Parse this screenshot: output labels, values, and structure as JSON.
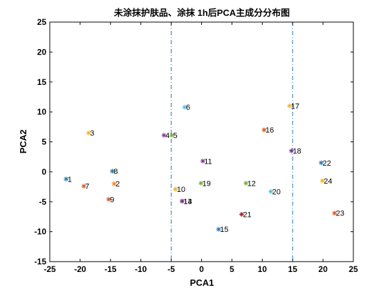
{
  "chart_data": {
    "type": "scatter",
    "title": "未涂抹护肤品、涂抹 1h后PCA主成分分布图",
    "xlabel": "PCA1",
    "ylabel": "PCA2",
    "xlim": [
      -25,
      25
    ],
    "ylim": [
      -15,
      25
    ],
    "xticks": [
      "-25",
      "-20",
      "-15",
      "-10",
      "-5",
      "0",
      "5",
      "10",
      "15",
      "20",
      "25"
    ],
    "yticks": [
      "-15",
      "-10",
      "-5",
      "0",
      "5",
      "10",
      "15",
      "20",
      "25"
    ],
    "grid": false,
    "legend": "none",
    "reference_lines": [
      {
        "axis": "x",
        "value": -5,
        "style": "dash-dot",
        "color": "#1f77b4"
      },
      {
        "axis": "x",
        "value": 15,
        "style": "dash-dot",
        "color": "#1f77b4"
      }
    ],
    "points": [
      {
        "label": "1",
        "x": -22.3,
        "y": -1.2,
        "color": "#1f77b4"
      },
      {
        "label": "2",
        "x": -14.4,
        "y": -2.0,
        "color": "#ff7f0e"
      },
      {
        "label": "3",
        "x": -18.6,
        "y": 6.5,
        "color": "#edb120"
      },
      {
        "label": "4",
        "x": -6.2,
        "y": 6.1,
        "color": "#7e2f8e"
      },
      {
        "label": "5",
        "x": -4.9,
        "y": 6.1,
        "color": "#77ac30"
      },
      {
        "label": "6",
        "x": -2.8,
        "y": 10.8,
        "color": "#4dbeee"
      },
      {
        "label": "7",
        "x": -19.4,
        "y": -2.4,
        "color": "#d95319"
      },
      {
        "label": "8",
        "x": -14.7,
        "y": 0.1,
        "color": "#1f77b4"
      },
      {
        "label": "9",
        "x": -15.3,
        "y": -4.6,
        "color": "#d95319"
      },
      {
        "label": "10",
        "x": -4.3,
        "y": -2.9,
        "color": "#edb120"
      },
      {
        "label": "11",
        "x": 0.2,
        "y": 1.8,
        "color": "#7e2f8e"
      },
      {
        "label": "12",
        "x": 7.3,
        "y": -1.9,
        "color": "#77ac30"
      },
      {
        "label": "13",
        "x": -3.2,
        "y": -4.9,
        "color": "#a2142f"
      },
      {
        "label": "14",
        "x": -3.2,
        "y": -4.9,
        "color": "#7e2f8e"
      },
      {
        "label": "15",
        "x": 2.8,
        "y": -9.6,
        "color": "#1f77b4"
      },
      {
        "label": "16",
        "x": 10.3,
        "y": 7.0,
        "color": "#d95319"
      },
      {
        "label": "17",
        "x": 14.5,
        "y": 11.0,
        "color": "#edb120"
      },
      {
        "label": "18",
        "x": 14.8,
        "y": 3.5,
        "color": "#7e2f8e"
      },
      {
        "label": "19",
        "x": -0.1,
        "y": -1.9,
        "color": "#77ac30"
      },
      {
        "label": "20",
        "x": 11.4,
        "y": -3.3,
        "color": "#4dbeee"
      },
      {
        "label": "21",
        "x": 6.6,
        "y": -7.1,
        "color": "#a2142f"
      },
      {
        "label": "22",
        "x": 19.7,
        "y": 1.5,
        "color": "#1f77b4"
      },
      {
        "label": "23",
        "x": 21.9,
        "y": -6.9,
        "color": "#d95319"
      },
      {
        "label": "24",
        "x": 19.9,
        "y": -1.5,
        "color": "#edb120"
      }
    ]
  }
}
